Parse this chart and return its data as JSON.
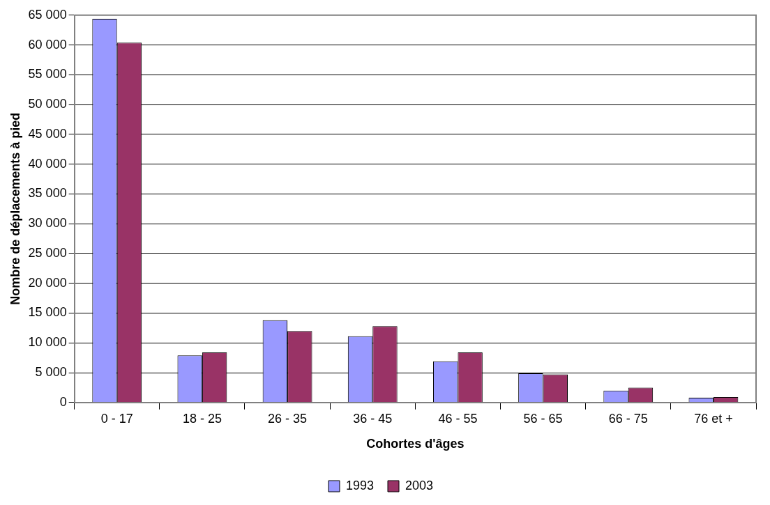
{
  "chart_data": {
    "type": "bar",
    "xlabel": "Cohortes d'âges",
    "ylabel": "Nombre de déplacements à pied",
    "categories": [
      "0 - 17",
      "18 - 25",
      "26 - 35",
      "36 - 45",
      "46 - 55",
      "56 - 65",
      "66 - 75",
      "76 et +"
    ],
    "series": [
      {
        "name": "1993",
        "color": "#9999ff",
        "values": [
          64400,
          7900,
          13800,
          11100,
          6900,
          4900,
          2000,
          800
        ]
      },
      {
        "name": "2003",
        "color": "#993366",
        "values": [
          60400,
          8400,
          12000,
          12800,
          8400,
          4700,
          2500,
          900
        ]
      }
    ],
    "ylim": [
      0,
      65000
    ],
    "yticks": [
      {
        "value": 0,
        "label": "0"
      },
      {
        "value": 5000,
        "label": "5 000"
      },
      {
        "value": 10000,
        "label": "10 000"
      },
      {
        "value": 15000,
        "label": "15 000"
      },
      {
        "value": 20000,
        "label": "20 000"
      },
      {
        "value": 25000,
        "label": "25 000"
      },
      {
        "value": 30000,
        "label": "30 000"
      },
      {
        "value": 35000,
        "label": "35 000"
      },
      {
        "value": 40000,
        "label": "40 000"
      },
      {
        "value": 45000,
        "label": "45 000"
      },
      {
        "value": 50000,
        "label": "50 000"
      },
      {
        "value": 55000,
        "label": "55 000"
      },
      {
        "value": 60000,
        "label": "60 000"
      },
      {
        "value": 65000,
        "label": "65 000"
      }
    ],
    "grid": "y",
    "legend": "bottom"
  }
}
